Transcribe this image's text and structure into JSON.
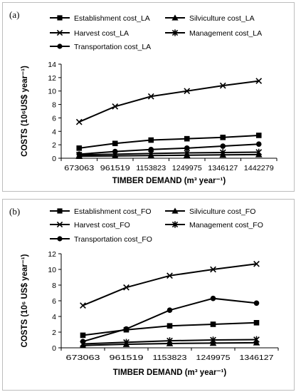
{
  "chart_data": [
    {
      "type": "line",
      "panel_label": "(a)",
      "x": [
        "673063",
        "961519",
        "1153823",
        "1249975",
        "1346127",
        "1442279"
      ],
      "series": [
        {
          "name": "Establishment cost_LA",
          "marker": "square",
          "values": [
            1.5,
            2.2,
            2.7,
            2.9,
            3.1,
            3.4
          ]
        },
        {
          "name": "Silviculture cost_LA",
          "marker": "triangle",
          "values": [
            0.3,
            0.35,
            0.4,
            0.45,
            0.5,
            0.55
          ]
        },
        {
          "name": "Harvest cost_LA",
          "marker": "x",
          "values": [
            5.4,
            7.7,
            9.2,
            10.0,
            10.8,
            11.5
          ]
        },
        {
          "name": "Management cost_LA",
          "marker": "star",
          "values": [
            0.5,
            0.6,
            0.7,
            0.8,
            0.85,
            0.9
          ]
        },
        {
          "name": "Transportation cost_LA",
          "marker": "circle",
          "values": [
            0.6,
            1.0,
            1.3,
            1.5,
            1.8,
            2.1
          ]
        }
      ],
      "xlabel": "TIMBER DEMAND (m³ year⁻¹)",
      "ylabel": "COSTS (10⁶US$ year⁻¹)",
      "ylim": [
        0,
        14
      ],
      "yticks": [
        "0",
        "2",
        "4",
        "6",
        "8",
        "10",
        "12",
        "14"
      ],
      "grid": false,
      "legend_position": "top"
    },
    {
      "type": "line",
      "panel_label": "(b)",
      "x": [
        "673063",
        "961519",
        "1153823",
        "1249975",
        "1346127"
      ],
      "series": [
        {
          "name": "Establishment cost_FO",
          "marker": "square",
          "values": [
            1.6,
            2.3,
            2.8,
            3.0,
            3.2
          ]
        },
        {
          "name": "Silviculture cost_FO",
          "marker": "triangle",
          "values": [
            0.3,
            0.45,
            0.55,
            0.6,
            0.65
          ]
        },
        {
          "name": "Harvest cost_FO",
          "marker": "x",
          "values": [
            5.4,
            7.7,
            9.2,
            10.0,
            10.7
          ]
        },
        {
          "name": "Management cost_FO",
          "marker": "star",
          "values": [
            0.5,
            0.7,
            0.9,
            1.0,
            1.05
          ]
        },
        {
          "name": "Transportation cost_FO",
          "marker": "circle",
          "values": [
            0.8,
            2.4,
            4.8,
            6.3,
            5.7
          ]
        }
      ],
      "xlabel": "TIMBER DEMAND (m³ year⁻¹)",
      "ylabel": "COSTS (10⁶ US$ year⁻¹)",
      "ylim": [
        0,
        12
      ],
      "yticks": [
        "0",
        "2",
        "4",
        "6",
        "8",
        "10",
        "12"
      ],
      "grid": false,
      "legend_position": "top"
    }
  ]
}
